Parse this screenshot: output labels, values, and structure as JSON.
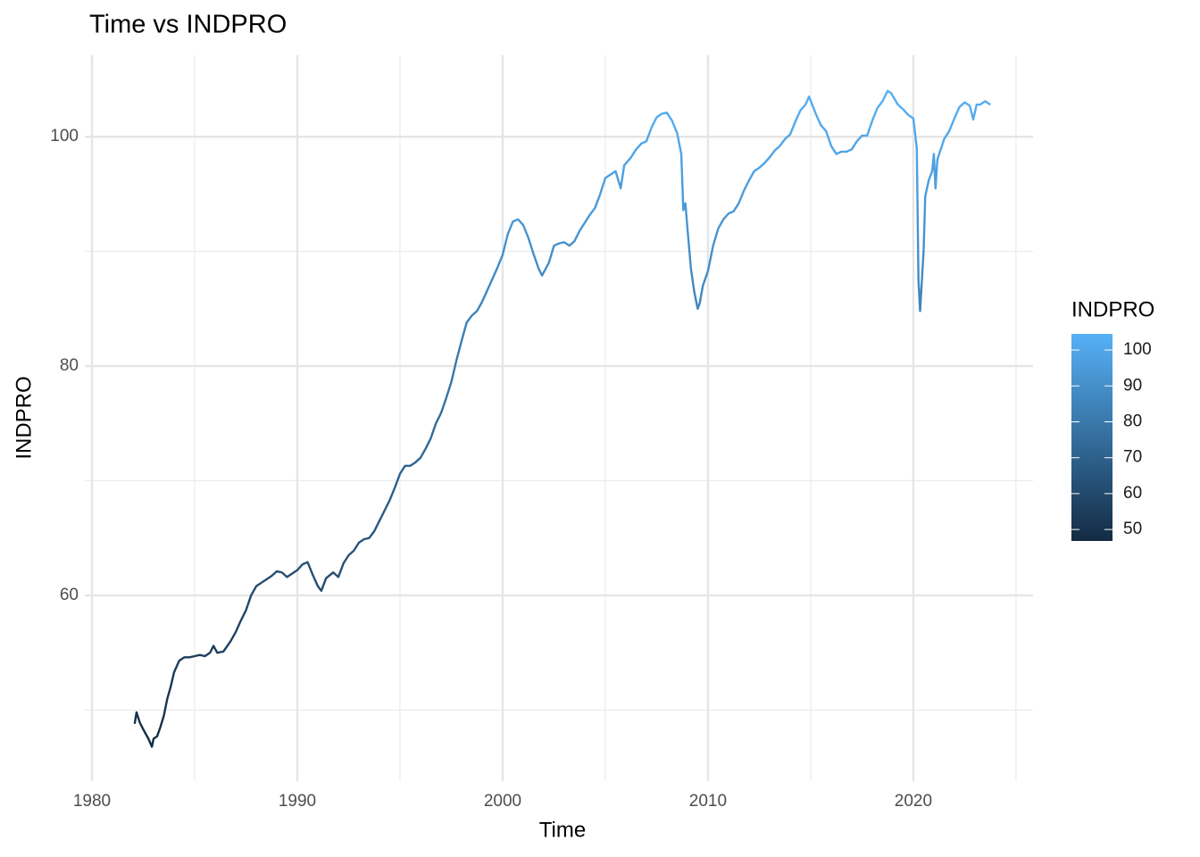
{
  "chart_data": {
    "type": "line",
    "title": "Time vs INDPRO",
    "x_label": "Time",
    "y_label": "INDPRO",
    "x": [
      1982.08,
      1982.17,
      1982.33,
      1982.5,
      1982.75,
      1982.92,
      1983.0,
      1983.17,
      1983.33,
      1983.5,
      1983.67,
      1983.83,
      1984.0,
      1984.25,
      1984.5,
      1984.75,
      1985.0,
      1985.25,
      1985.5,
      1985.75,
      1985.92,
      1986.1,
      1986.4,
      1986.75,
      1987.0,
      1987.25,
      1987.5,
      1987.75,
      1988.0,
      1988.25,
      1988.5,
      1988.75,
      1989.0,
      1989.25,
      1989.5,
      1989.75,
      1990.0,
      1990.25,
      1990.5,
      1990.75,
      1991.0,
      1991.17,
      1991.4,
      1991.75,
      1992.0,
      1992.25,
      1992.5,
      1992.75,
      1993.0,
      1993.25,
      1993.5,
      1993.75,
      1994.0,
      1994.25,
      1994.5,
      1994.75,
      1995.0,
      1995.25,
      1995.5,
      1995.75,
      1996.0,
      1996.25,
      1996.5,
      1996.75,
      1997.0,
      1997.25,
      1997.5,
      1997.75,
      1998.0,
      1998.25,
      1998.5,
      1998.75,
      1999.0,
      1999.25,
      1999.5,
      1999.75,
      2000.0,
      2000.25,
      2000.5,
      2000.75,
      2001.0,
      2001.25,
      2001.5,
      2001.75,
      2001.92,
      2002.25,
      2002.5,
      2002.75,
      2003.0,
      2003.25,
      2003.5,
      2003.75,
      2004.0,
      2004.25,
      2004.5,
      2004.75,
      2005.0,
      2005.25,
      2005.5,
      2005.75,
      2005.92,
      2006.25,
      2006.5,
      2006.75,
      2007.0,
      2007.25,
      2007.5,
      2007.75,
      2008.0,
      2008.25,
      2008.5,
      2008.7,
      2008.8,
      2008.9,
      2009.0,
      2009.17,
      2009.33,
      2009.5,
      2009.6,
      2009.75,
      2010.0,
      2010.25,
      2010.5,
      2010.75,
      2011.0,
      2011.25,
      2011.5,
      2011.75,
      2012.0,
      2012.25,
      2012.5,
      2012.75,
      2013.0,
      2013.25,
      2013.5,
      2013.75,
      2014.0,
      2014.25,
      2014.5,
      2014.75,
      2014.92,
      2015.25,
      2015.5,
      2015.75,
      2016.0,
      2016.25,
      2016.5,
      2016.75,
      2017.0,
      2017.25,
      2017.5,
      2017.75,
      2018.0,
      2018.25,
      2018.5,
      2018.75,
      2018.92,
      2019.25,
      2019.5,
      2019.75,
      2020.0,
      2020.17,
      2020.25,
      2020.33,
      2020.5,
      2020.58,
      2020.75,
      2020.92,
      2021.0,
      2021.08,
      2021.17,
      2021.5,
      2021.75,
      2022.0,
      2022.25,
      2022.5,
      2022.75,
      2022.92,
      2023.08,
      2023.25,
      2023.5,
      2023.75
    ],
    "values": [
      48.8,
      49.8,
      48.9,
      48.3,
      47.5,
      46.8,
      47.5,
      47.7,
      48.5,
      49.5,
      51.0,
      52.0,
      53.3,
      54.3,
      54.6,
      54.6,
      54.7,
      54.8,
      54.7,
      55.0,
      55.6,
      55.0,
      55.1,
      56.0,
      56.8,
      57.8,
      58.7,
      60.0,
      60.8,
      61.1,
      61.4,
      61.7,
      62.1,
      62.0,
      61.6,
      61.9,
      62.2,
      62.7,
      62.9,
      61.8,
      60.8,
      60.4,
      61.5,
      62.0,
      61.6,
      62.8,
      63.5,
      63.9,
      64.6,
      64.9,
      65.0,
      65.6,
      66.5,
      67.4,
      68.3,
      69.4,
      70.6,
      71.3,
      71.3,
      71.6,
      72.0,
      72.8,
      73.7,
      75.0,
      75.9,
      77.2,
      78.6,
      80.5,
      82.2,
      83.8,
      84.4,
      84.8,
      85.6,
      86.6,
      87.6,
      88.6,
      89.7,
      91.5,
      92.6,
      92.8,
      92.3,
      91.2,
      89.8,
      88.5,
      87.9,
      89.0,
      90.5,
      90.7,
      90.8,
      90.5,
      90.9,
      91.8,
      92.5,
      93.2,
      93.8,
      95.0,
      96.4,
      96.7,
      97.0,
      95.5,
      97.5,
      98.2,
      98.9,
      99.4,
      99.6,
      100.8,
      101.7,
      102.0,
      102.1,
      101.4,
      100.3,
      98.5,
      93.6,
      94.2,
      92.0,
      88.5,
      86.5,
      85.0,
      85.5,
      87.0,
      88.3,
      90.5,
      92.0,
      92.8,
      93.3,
      93.5,
      94.2,
      95.3,
      96.2,
      97.0,
      97.3,
      97.7,
      98.2,
      98.8,
      99.2,
      99.8,
      100.2,
      101.3,
      102.3,
      102.8,
      103.5,
      102.0,
      101.0,
      100.5,
      99.2,
      98.5,
      98.7,
      98.7,
      98.9,
      99.6,
      100.1,
      100.1,
      101.4,
      102.5,
      103.1,
      104.0,
      103.8,
      102.8,
      102.4,
      101.9,
      101.6,
      99.0,
      87.5,
      84.8,
      90.0,
      94.8,
      96.2,
      97.0,
      98.5,
      95.5,
      98.0,
      99.8,
      100.5,
      101.6,
      102.6,
      103.0,
      102.7,
      101.5,
      102.8,
      102.8,
      103.1,
      102.8
    ],
    "xlim": [
      1980,
      2025.83
    ],
    "xticks": [
      1980,
      1990,
      2000,
      2010,
      2020
    ],
    "minor_xticks": [
      1985,
      1995,
      2005,
      2015,
      2025
    ],
    "ylim": [
      43.8,
      107.1
    ],
    "yticks": [
      60,
      80,
      100
    ],
    "minor_yticks": [
      50,
      70,
      90
    ],
    "grid": true,
    "color_scale": {
      "title": "INDPRO",
      "low": "#132B43",
      "high": "#56B1F7",
      "limits": [
        46.8,
        104.5
      ],
      "ticks": [
        50,
        60,
        70,
        80,
        90,
        100
      ]
    }
  }
}
